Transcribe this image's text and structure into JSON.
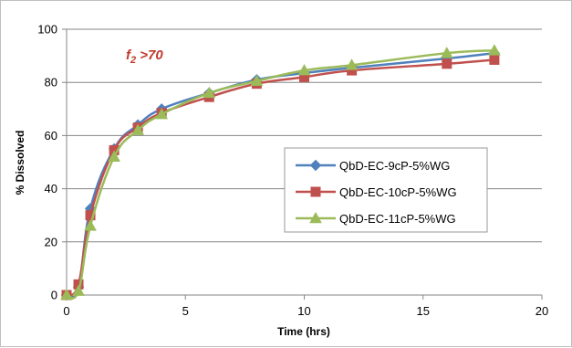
{
  "chart_data": {
    "type": "line",
    "title": "",
    "xlabel": "Time (hrs)",
    "ylabel": "% Dissolved",
    "xlim": [
      0,
      20
    ],
    "ylim": [
      0,
      100
    ],
    "xticks": [
      0,
      5,
      10,
      15,
      20
    ],
    "yticks": [
      0,
      20,
      40,
      60,
      80,
      100
    ],
    "grid": "horizontal",
    "legend_position": "right",
    "annotation": {
      "f": "f",
      "sub": "2",
      "rest": " >70",
      "color": "#c0392b"
    },
    "series": [
      {
        "name": "QbD-EC-9cP-5%WG",
        "color": "#4f81bd",
        "marker": "diamond",
        "x": [
          0,
          0.5,
          1,
          2,
          3,
          4,
          6,
          8,
          10,
          12,
          16,
          18
        ],
        "y": [
          0,
          3,
          32.5,
          55,
          64,
          70,
          76,
          81,
          83.5,
          85.5,
          89,
          91
        ]
      },
      {
        "name": "QbD-EC-10cP-5%WG",
        "color": "#c0504d",
        "marker": "square",
        "x": [
          0,
          0.5,
          1,
          2,
          3,
          4,
          6,
          8,
          10,
          12,
          16,
          18
        ],
        "y": [
          0,
          4,
          30,
          54.5,
          63,
          68.5,
          74.5,
          79.5,
          82,
          84.5,
          87,
          88.5
        ]
      },
      {
        "name": "QbD-EC-11cP-5%WG",
        "color": "#9bbb59",
        "marker": "triangle",
        "x": [
          0,
          0.5,
          1,
          2,
          3,
          4,
          6,
          8,
          10,
          12,
          16,
          18
        ],
        "y": [
          0,
          1.5,
          26,
          52,
          62,
          68,
          76,
          80.5,
          84.5,
          86.5,
          91,
          92
        ]
      }
    ]
  }
}
